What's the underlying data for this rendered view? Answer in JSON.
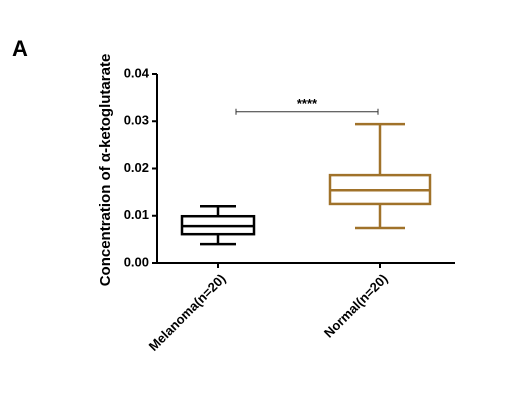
{
  "chart_data": {
    "type": "box",
    "panel_label": "A",
    "y_label": "Concentration of α-ketoglutarate",
    "categories": [
      "Melanoma(n=20)",
      "Normal(n=20)"
    ],
    "boxes": [
      {
        "color": "#000000",
        "min": 0.004,
        "q1": 0.0061,
        "median": 0.0078,
        "q3": 0.0099,
        "max": 0.012
      },
      {
        "color": "#a0722a",
        "min": 0.0074,
        "q1": 0.0125,
        "median": 0.0154,
        "q3": 0.0186,
        "max": 0.0294
      }
    ],
    "significance": {
      "value": 0.032,
      "label": "****"
    },
    "ylim": [
      0,
      0.04
    ],
    "yticks": [
      {
        "value": 0,
        "label": "0.00"
      },
      0.01,
      0.02,
      0.03,
      0.04
    ]
  }
}
